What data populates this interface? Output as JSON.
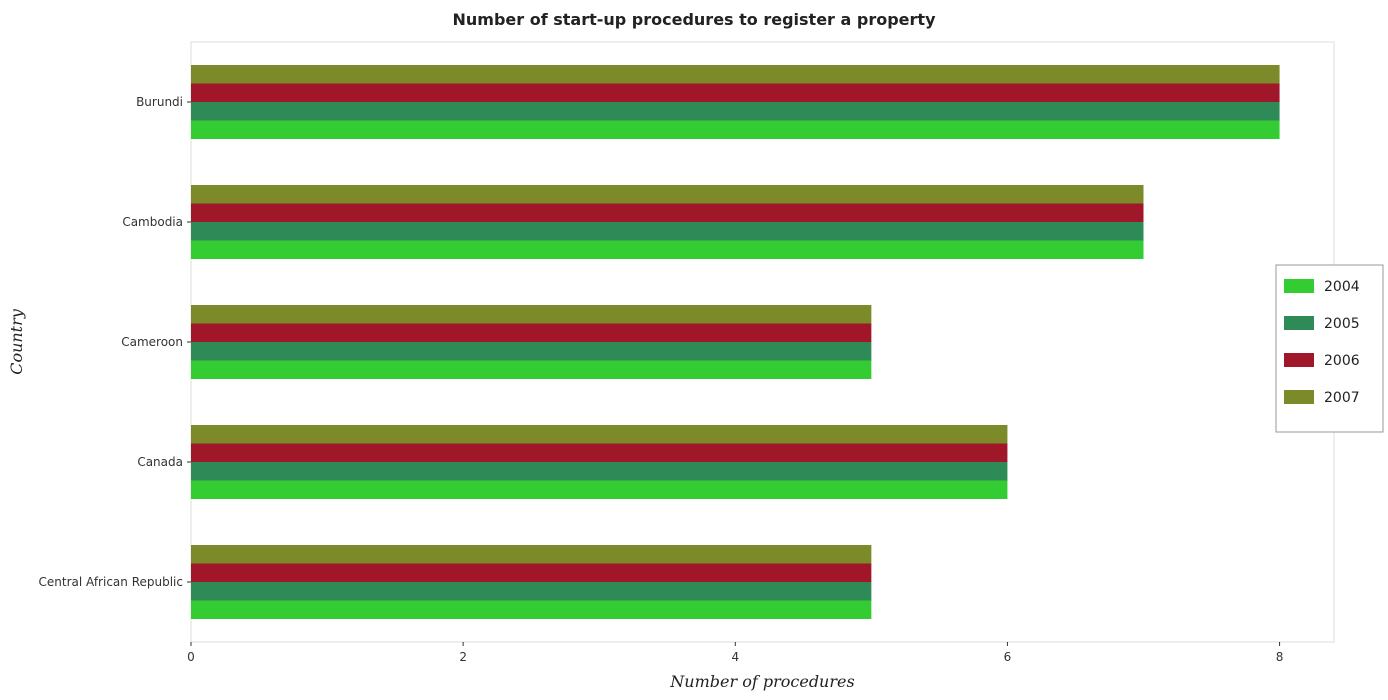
{
  "chart_data": {
    "type": "bar",
    "orientation": "horizontal",
    "title": "Number of start-up procedures to register a property",
    "xlabel": "Number of procedures",
    "ylabel": "Country",
    "categories": [
      "Burundi",
      "Cambodia",
      "Cameroon",
      "Canada",
      "Central African Republic"
    ],
    "series": [
      {
        "name": "2004",
        "color": "#33cc33",
        "values": [
          8,
          7,
          5,
          6,
          5
        ]
      },
      {
        "name": "2005",
        "color": "#2e8b57",
        "values": [
          8,
          7,
          5,
          6,
          5
        ]
      },
      {
        "name": "2006",
        "color": "#a0172a",
        "values": [
          8,
          7,
          5,
          6,
          5
        ]
      },
      {
        "name": "2007",
        "color": "#7c8a2a",
        "values": [
          8,
          7,
          5,
          6,
          5
        ]
      }
    ],
    "xlim": [
      0,
      8.4
    ],
    "xticks": [
      0,
      2,
      4,
      6,
      8
    ],
    "grid": false,
    "legend_position": "right"
  }
}
